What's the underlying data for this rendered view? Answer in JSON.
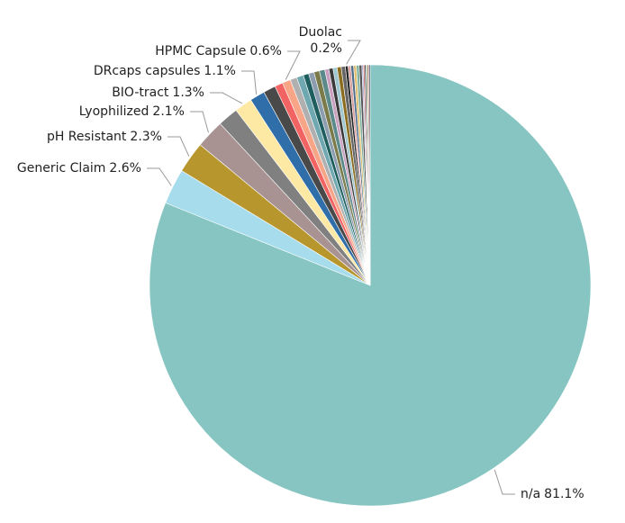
{
  "chart_data": {
    "type": "pie",
    "categories": [
      "n/a",
      "Generic Claim",
      "pH Resistant",
      "Lyophilized",
      null,
      "BIO-tract",
      "DRcaps capsules",
      null,
      null,
      "HPMC Capsule",
      null,
      null,
      null,
      null,
      null,
      null,
      null,
      null,
      null,
      null,
      null,
      "Duolac",
      null,
      null,
      null,
      null,
      null,
      null,
      null,
      null,
      null,
      null,
      null
    ],
    "values": [
      81.1,
      2.6,
      2.3,
      2.1,
      1.5,
      1.3,
      1.1,
      0.9,
      0.6,
      0.6,
      0.5,
      0.5,
      0.4,
      0.4,
      0.4,
      0.4,
      0.3,
      0.3,
      0.3,
      0.3,
      0.3,
      0.2,
      0.2,
      0.2,
      0.2,
      0.2,
      0.2,
      0.1,
      0.1,
      0.1,
      0.1,
      0.1,
      0.1
    ],
    "value_labels": [
      "81.1%",
      "2.6%",
      "2.3%",
      "2.1%",
      null,
      "1.3%",
      "1.1%",
      null,
      null,
      "0.6%",
      null,
      null,
      null,
      null,
      null,
      null,
      null,
      null,
      null,
      null,
      null,
      "0.2%",
      null,
      null,
      null,
      null,
      null,
      null,
      null,
      null,
      null,
      null,
      null
    ],
    "colors": [
      "#86c5c2",
      "#a6dcec",
      "#b8962e",
      "#a89292",
      "#808080",
      "#fde9a3",
      "#2f6ea8",
      "#494949",
      "#f26363",
      "#f8a487",
      "#b0b0b0",
      "#6fa8b0",
      "#1f5e5e",
      "#8c9db0",
      "#7a7a4a",
      "#5c8a8a",
      "#c9a0c0",
      "#3a3a3a",
      "#9ec7d0",
      "#8b6d1f",
      "#666666",
      "#222222",
      "#d9a0a0",
      "#4d6d8a",
      "#e0c070",
      "#7fb0a0",
      "#555555",
      "#a0a0d0",
      "#c06060",
      "#303030",
      "#90b090",
      "#b07050",
      "#404060"
    ]
  }
}
